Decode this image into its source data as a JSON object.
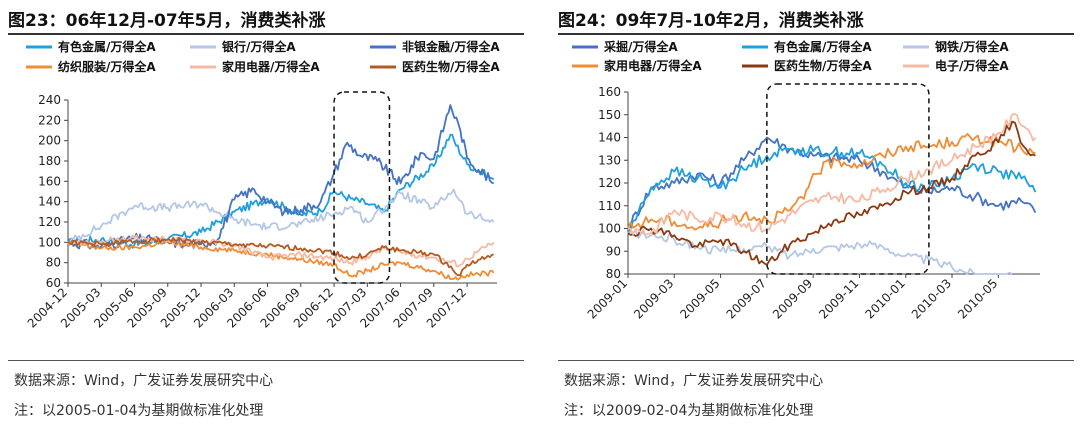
{
  "charts": [
    {
      "figure_title": "图23：06年12月-07年5月，消费类补涨",
      "source": "数据来源：Wind，广发证券发展研究中心",
      "note": "注：以2005-01-04为基期做标准化处理",
      "chart_data": {
        "type": "line",
        "title": "",
        "xlabel": "",
        "ylabel": "",
        "ylim": [
          60,
          240
        ],
        "yticks": [
          60,
          80,
          100,
          120,
          140,
          160,
          180,
          200,
          220,
          240
        ],
        "x": [
          "2004-12",
          "2005-03",
          "2005-06",
          "2005-09",
          "2005-12",
          "2006-03",
          "2006-06",
          "2006-09",
          "2006-12",
          "2007-03",
          "2007-06",
          "2007-09",
          "2007-12"
        ],
        "x_last": "2008-01",
        "legend": "top",
        "grid": false,
        "highlight_box": [
          "2006-12",
          "2007-05"
        ],
        "series": [
          {
            "name": "有色金属/万得全A",
            "color": "#1fa0dc",
            "noise": 4,
            "values": [
              [
                0,
                100
              ],
              [
                1,
                103
              ],
              [
                2,
                98
              ],
              [
                3,
                103
              ],
              [
                4,
                110
              ],
              [
                5,
                130
              ],
              [
                6,
                143
              ],
              [
                6.6,
                133
              ],
              [
                7,
                127
              ],
              [
                7.6,
                131
              ],
              [
                8,
                150
              ],
              [
                8.5,
                143
              ],
              [
                9,
                138
              ],
              [
                9.5,
                130
              ],
              [
                10,
                152
              ],
              [
                11,
                175
              ],
              [
                11.5,
                206
              ],
              [
                12,
                177
              ],
              [
                12.8,
                162
              ]
            ]
          },
          {
            "name": "银行/万得全A",
            "color": "#b4c7e7",
            "noise": 4,
            "values": [
              [
                0,
                100
              ],
              [
                1,
                116
              ],
              [
                2,
                136
              ],
              [
                3,
                134
              ],
              [
                4,
                138
              ],
              [
                5,
                122
              ],
              [
                6,
                115
              ],
              [
                7,
                118
              ],
              [
                8,
                128
              ],
              [
                8.5,
                135
              ],
              [
                9,
                120
              ],
              [
                10,
                148
              ],
              [
                11,
                134
              ],
              [
                11.6,
                152
              ],
              [
                12,
                128
              ],
              [
                12.8,
                120
              ]
            ]
          },
          {
            "name": "非银金融/万得全A",
            "color": "#4472c4",
            "noise": 5,
            "values": [
              [
                0,
                100
              ],
              [
                1,
                96
              ],
              [
                2,
                104
              ],
              [
                3,
                100
              ],
              [
                4,
                98
              ],
              [
                4.5,
                103
              ],
              [
                5,
                142
              ],
              [
                5.6,
                152
              ],
              [
                6,
                140
              ],
              [
                6.5,
                130
              ],
              [
                7,
                132
              ],
              [
                7.6,
                140
              ],
              [
                8,
                168
              ],
              [
                8.4,
                198
              ],
              [
                8.8,
                185
              ],
              [
                9.3,
                180
              ],
              [
                10,
                158
              ],
              [
                10.6,
                188
              ],
              [
                11,
                182
              ],
              [
                11.5,
                235
              ],
              [
                11.8,
                210
              ],
              [
                12,
                183
              ],
              [
                12.8,
                158
              ]
            ]
          },
          {
            "name": "纺织服装/万得全A",
            "color": "#f08c35",
            "noise": 2.5,
            "values": [
              [
                0,
                100
              ],
              [
                1,
                94
              ],
              [
                2,
                95
              ],
              [
                3,
                100
              ],
              [
                4,
                95
              ],
              [
                5,
                92
              ],
              [
                6,
                88
              ],
              [
                7,
                83
              ],
              [
                8,
                78
              ],
              [
                8.5,
                67
              ],
              [
                9,
                72
              ],
              [
                9.5,
                78
              ],
              [
                10,
                80
              ],
              [
                11,
                72
              ],
              [
                11.6,
                64
              ],
              [
                12,
                68
              ],
              [
                12.8,
                70
              ]
            ]
          },
          {
            "name": "家用电器/万得全A",
            "color": "#f7b9a1",
            "noise": 3,
            "values": [
              [
                0,
                100
              ],
              [
                1,
                100
              ],
              [
                2,
                104
              ],
              [
                3,
                103
              ],
              [
                4,
                102
              ],
              [
                5,
                97
              ],
              [
                6,
                85
              ],
              [
                7,
                88
              ],
              [
                8,
                84
              ],
              [
                8.5,
                80
              ],
              [
                9,
                86
              ],
              [
                9.5,
                94
              ],
              [
                10,
                90
              ],
              [
                11,
                85
              ],
              [
                11.8,
                78
              ],
              [
                12,
                84
              ],
              [
                12.8,
                100
              ]
            ]
          },
          {
            "name": "医药生物/万得全A",
            "color": "#b55a20",
            "noise": 2.5,
            "values": [
              [
                0,
                100
              ],
              [
                1,
                98
              ],
              [
                2,
                101
              ],
              [
                3,
                103
              ],
              [
                4,
                100
              ],
              [
                5,
                98
              ],
              [
                6,
                96
              ],
              [
                7,
                94
              ],
              [
                8,
                90
              ],
              [
                8.5,
                84
              ],
              [
                9,
                88
              ],
              [
                9.5,
                95
              ],
              [
                10,
                92
              ],
              [
                11,
                88
              ],
              [
                11.8,
                68
              ],
              [
                12,
                78
              ],
              [
                12.8,
                88
              ]
            ]
          }
        ]
      }
    },
    {
      "figure_title": "图24：09年7月-10年2月，消费类补涨",
      "source": "数据来源：Wind，广发证券发展研究中心",
      "note": "注：以2009-02-04为基期做标准化处理",
      "chart_data": {
        "type": "line",
        "title": "",
        "xlabel": "",
        "ylabel": "",
        "ylim": [
          80,
          160
        ],
        "yticks": [
          80,
          90,
          100,
          110,
          120,
          130,
          140,
          150,
          160
        ],
        "x": [
          "2009-01",
          "2009-03",
          "2009-05",
          "2009-07",
          "2009-09",
          "2009-11",
          "2010-01",
          "2010-03",
          "2010-05"
        ],
        "x_last": "2010-06",
        "legend": "top",
        "grid": false,
        "highlight_box": [
          "2009-07",
          "2010-02"
        ],
        "series": [
          {
            "name": "采掘/万得全A",
            "color": "#4472c4",
            "noise": 2.5,
            "values": [
              [
                0,
                100
              ],
              [
                0.5,
                118
              ],
              [
                1,
                120
              ],
              [
                1.5,
                124
              ],
              [
                2,
                120
              ],
              [
                2.5,
                130
              ],
              [
                3,
                140
              ],
              [
                3.5,
                135
              ],
              [
                4,
                132
              ],
              [
                5,
                130
              ],
              [
                5.5,
                125
              ],
              [
                6,
                118
              ],
              [
                6.5,
                116
              ],
              [
                7,
                118
              ],
              [
                7.5,
                114
              ],
              [
                8,
                110
              ],
              [
                8.5,
                112
              ],
              [
                8.8,
                107
              ]
            ]
          },
          {
            "name": "有色金属/万得全A",
            "color": "#1fa0dc",
            "noise": 2.5,
            "values": [
              [
                0,
                98
              ],
              [
                0.5,
                118
              ],
              [
                1,
                125
              ],
              [
                1.5,
                122
              ],
              [
                2,
                118
              ],
              [
                2.5,
                126
              ],
              [
                3,
                132
              ],
              [
                3.5,
                135
              ],
              [
                4,
                134
              ],
              [
                5,
                133
              ],
              [
                5.5,
                128
              ],
              [
                6,
                120
              ],
              [
                6.5,
                118
              ],
              [
                7,
                122
              ],
              [
                7.5,
                128
              ],
              [
                8,
                125
              ],
              [
                8.5,
                122
              ],
              [
                8.8,
                116
              ]
            ]
          },
          {
            "name": "钢铁/万得全A",
            "color": "#b4c7e7",
            "noise": 2,
            "values": [
              [
                0,
                98
              ],
              [
                0.5,
                97
              ],
              [
                1,
                95
              ],
              [
                1.5,
                92
              ],
              [
                2,
                90
              ],
              [
                2.5,
                91
              ],
              [
                3,
                92
              ],
              [
                3.5,
                88
              ],
              [
                4,
                91
              ],
              [
                4.5,
                92
              ],
              [
                5,
                93
              ],
              [
                5.5,
                92
              ],
              [
                6,
                88
              ],
              [
                6.5,
                86
              ],
              [
                7,
                83
              ],
              [
                7.5,
                80
              ],
              [
                8,
                79
              ],
              [
                8.3,
                79
              ]
            ]
          },
          {
            "name": "家用电器/万得全A",
            "color": "#f08c35",
            "noise": 2.5,
            "values": [
              [
                0,
                100
              ],
              [
                0.5,
                104
              ],
              [
                1,
                103
              ],
              [
                1.5,
                100
              ],
              [
                2,
                103
              ],
              [
                2.5,
                106
              ],
              [
                3,
                104
              ],
              [
                3.5,
                108
              ],
              [
                3.8,
                113
              ],
              [
                4,
                124
              ],
              [
                4.5,
                130
              ],
              [
                5,
                128
              ],
              [
                5.5,
                132
              ],
              [
                6,
                136
              ],
              [
                6.5,
                136
              ],
              [
                7,
                138
              ],
              [
                7.5,
                140
              ],
              [
                8,
                138
              ],
              [
                8.5,
                135
              ],
              [
                8.8,
                133
              ]
            ]
          },
          {
            "name": "医药生物/万得全A",
            "color": "#8b3a10",
            "noise": 2,
            "values": [
              [
                0,
                98
              ],
              [
                0.5,
                100
              ],
              [
                1,
                97
              ],
              [
                1.5,
                92
              ],
              [
                2,
                95
              ],
              [
                2.5,
                90
              ],
              [
                3,
                84
              ],
              [
                3.5,
                93
              ],
              [
                4,
                98
              ],
              [
                4.5,
                104
              ],
              [
                5,
                106
              ],
              [
                5.5,
                110
              ],
              [
                6,
                116
              ],
              [
                6.5,
                118
              ],
              [
                7,
                122
              ],
              [
                7.5,
                132
              ],
              [
                8,
                138
              ],
              [
                8.3,
                147
              ],
              [
                8.6,
                135
              ],
              [
                8.8,
                132
              ]
            ]
          },
          {
            "name": "电子/万得全A",
            "color": "#f7b9a1",
            "noise": 2.5,
            "values": [
              [
                0,
                100
              ],
              [
                0.5,
                98
              ],
              [
                1,
                108
              ],
              [
                1.5,
                104
              ],
              [
                2,
                106
              ],
              [
                2.5,
                102
              ],
              [
                3,
                100
              ],
              [
                3.5,
                106
              ],
              [
                4,
                112
              ],
              [
                4.5,
                114
              ],
              [
                5,
                112
              ],
              [
                5.5,
                117
              ],
              [
                6,
                122
              ],
              [
                6.5,
                126
              ],
              [
                7,
                130
              ],
              [
                7.5,
                136
              ],
              [
                8,
                142
              ],
              [
                8.4,
                150
              ],
              [
                8.6,
                144
              ],
              [
                8.8,
                140
              ]
            ]
          }
        ]
      }
    }
  ]
}
